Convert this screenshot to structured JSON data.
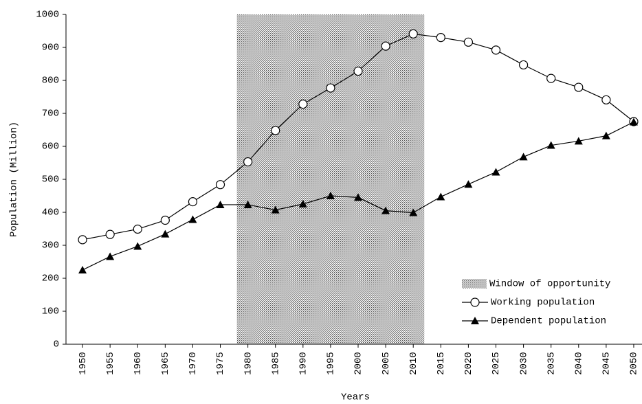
{
  "chart_data": {
    "type": "line",
    "x_label": "Years",
    "y_label": "Population (Million)",
    "x": [
      1950,
      1955,
      1960,
      1965,
      1970,
      1975,
      1980,
      1985,
      1990,
      1995,
      2000,
      2005,
      2010,
      2015,
      2020,
      2025,
      2030,
      2035,
      2040,
      2045,
      2050
    ],
    "series": [
      {
        "name": "Working population",
        "color": "#000000",
        "marker": "circle",
        "values": [
          317,
          333,
          349,
          376,
          432,
          484,
          553,
          648,
          728,
          777,
          828,
          904,
          941,
          930,
          916,
          892,
          847,
          806,
          779,
          741,
          675
        ]
      },
      {
        "name": "Dependent population",
        "color": "#000000",
        "marker": "triangle",
        "values": [
          225,
          266,
          297,
          334,
          378,
          423,
          423,
          407,
          425,
          450,
          445,
          405,
          399,
          447,
          485,
          522,
          568,
          603,
          616,
          632,
          674
        ]
      }
    ],
    "window": {
      "name": "Window of opportunity",
      "range": [
        1978,
        2012
      ]
    },
    "xlim": [
      1947,
      2051.5
    ],
    "xticks": [
      1950,
      1955,
      1960,
      1965,
      1970,
      1975,
      1980,
      1985,
      1990,
      1995,
      2000,
      2005,
      2010,
      2015,
      2020,
      2025,
      2030,
      2035,
      2040,
      2045,
      2050
    ],
    "ylim": [
      0,
      1000
    ],
    "yticks": [
      0,
      100,
      200,
      300,
      400,
      500,
      600,
      700,
      800,
      900,
      1000
    ],
    "legend": "lower right"
  }
}
